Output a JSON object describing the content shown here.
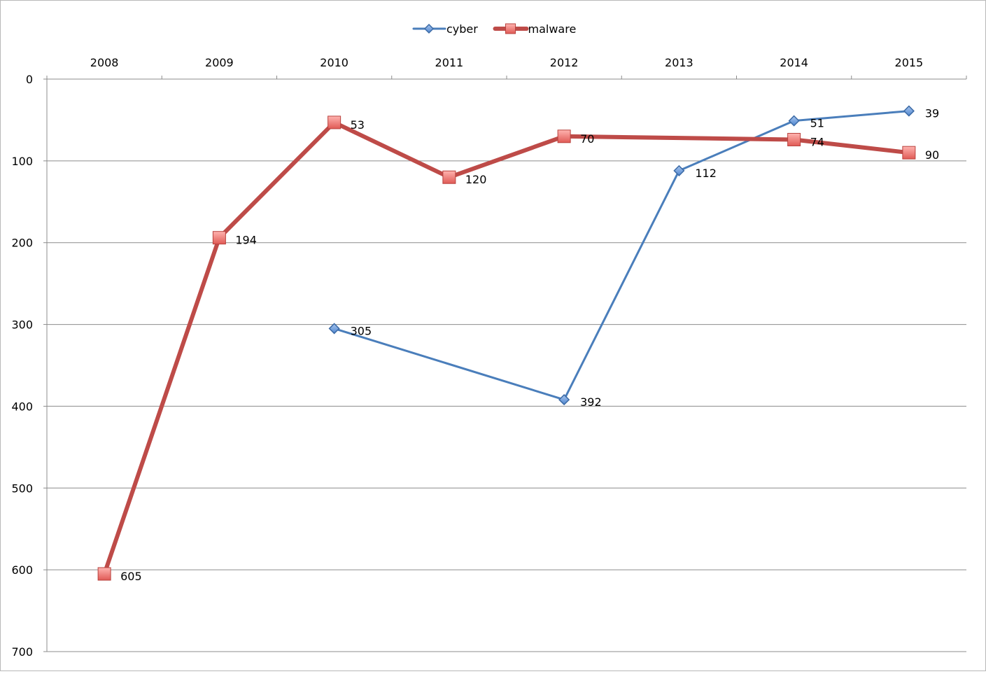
{
  "chart_data": {
    "type": "line",
    "title": "",
    "xlabel": "",
    "ylabel": "",
    "categories": [
      "2008",
      "2009",
      "2010",
      "2011",
      "2012",
      "2013",
      "2014",
      "2015"
    ],
    "ylim": [
      0,
      700
    ],
    "y_inverted": true,
    "y_ticks": [
      0,
      100,
      200,
      300,
      400,
      500,
      600,
      700
    ],
    "x_axis_position": "top",
    "grid": "horizontal",
    "legend_position": "top-center",
    "series": [
      {
        "name": "cyber",
        "marker": "diamond",
        "color": "#4a7ebb",
        "values": [
          null,
          null,
          305,
          null,
          392,
          112,
          51,
          39
        ]
      },
      {
        "name": "malware",
        "marker": "square",
        "color": "#be4b48",
        "values": [
          605,
          194,
          53,
          120,
          70,
          null,
          74,
          90
        ]
      }
    ]
  }
}
